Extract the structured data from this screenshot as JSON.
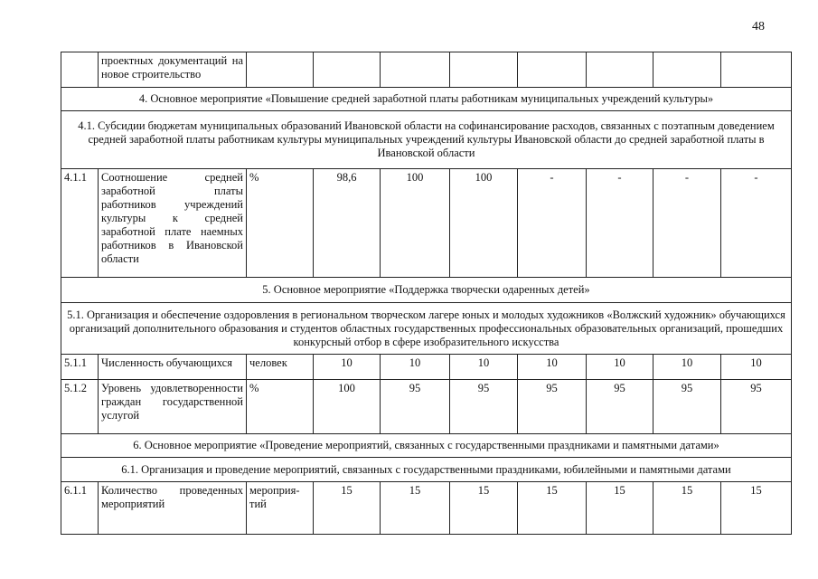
{
  "page_number": "48",
  "rows": [
    {
      "type": "row",
      "num": "",
      "name": "проектных документаций на новое строительство",
      "unit": "",
      "values": [
        "",
        "",
        "",
        "",
        "",
        "",
        ""
      ]
    },
    {
      "type": "section",
      "text": "4. Основное мероприятие «Повышение средней заработной платы работникам муниципальных учреждений культуры»"
    },
    {
      "type": "section",
      "text": "4.1. Субсидии бюджетам муниципальных образований Ивановской области на софинансирование расходов, связанных с поэтапным доведением средней заработной платы работникам культуры муниципальных учреждений культуры Ивановской области до средней заработной платы в Ивановской области"
    },
    {
      "type": "row",
      "num": "4.1.1",
      "name": "Соотношение средней заработной платы работников учреждений культуры к средней заработной плате наемных работников в Ивановской области",
      "unit": "%",
      "values": [
        "98,6",
        "100",
        "100",
        "-",
        "-",
        "-",
        "-"
      ]
    },
    {
      "type": "section",
      "text": "5. Основное мероприятие «Поддержка творчески одаренных детей»"
    },
    {
      "type": "section",
      "text": "5.1. Организация и обеспечение оздоровления в региональном творческом лагере юных и молодых художников «Волжский художник» обучающихся организаций дополнительного образования и студентов областных государственных профессиональных образовательных организаций, прошедших конкурсный отбор в сфере изобразительного искусства"
    },
    {
      "type": "row",
      "num": "5.1.1",
      "name": "Численность обучающихся",
      "unit": "человек",
      "values": [
        "10",
        "10",
        "10",
        "10",
        "10",
        "10",
        "10"
      ]
    },
    {
      "type": "row",
      "num": "5.1.2",
      "name": "Уровень удовлетворенности граждан государственной услугой",
      "unit": "%",
      "values": [
        "100",
        "95",
        "95",
        "95",
        "95",
        "95",
        "95"
      ]
    },
    {
      "type": "section",
      "text": "6. Основное мероприятие «Проведение мероприятий, связанных с государственными праздниками и памятными датами»"
    },
    {
      "type": "section",
      "text": "6.1. Организация и проведение мероприятий, связанных с государственными праздниками, юбилейными и памятными датами"
    },
    {
      "type": "row",
      "num": "6.1.1",
      "name": "Количество проведенных мероприятий",
      "unit": "мероприя-тий",
      "values": [
        "15",
        "15",
        "15",
        "15",
        "15",
        "15",
        "15"
      ]
    }
  ]
}
